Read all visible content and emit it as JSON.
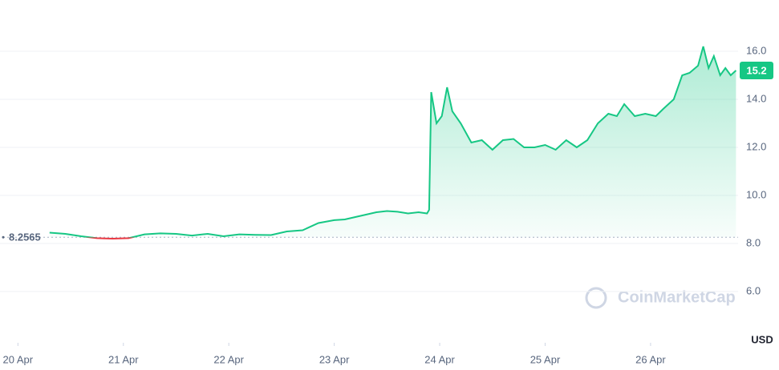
{
  "chart_data": {
    "type": "line",
    "x": [
      0.3,
      0.45,
      0.6,
      0.75,
      0.9,
      1.05,
      1.2,
      1.35,
      1.5,
      1.65,
      1.8,
      1.95,
      2.1,
      2.25,
      2.4,
      2.55,
      2.7,
      2.85,
      3.0,
      3.1,
      3.2,
      3.3,
      3.4,
      3.5,
      3.6,
      3.7,
      3.8,
      3.88,
      3.9,
      3.92,
      3.97,
      4.02,
      4.07,
      4.12,
      4.2,
      4.3,
      4.4,
      4.5,
      4.6,
      4.7,
      4.8,
      4.9,
      5.0,
      5.1,
      5.2,
      5.3,
      5.4,
      5.5,
      5.6,
      5.68,
      5.75,
      5.85,
      5.95,
      6.05,
      6.12,
      6.22,
      6.3,
      6.37,
      6.45,
      6.5,
      6.55,
      6.6,
      6.66,
      6.71,
      6.76,
      6.81
    ],
    "values": [
      8.45,
      8.4,
      8.3,
      8.22,
      8.2,
      8.22,
      8.38,
      8.42,
      8.4,
      8.33,
      8.4,
      8.3,
      8.38,
      8.36,
      8.35,
      8.5,
      8.55,
      8.85,
      8.97,
      9.0,
      9.1,
      9.2,
      9.3,
      9.35,
      9.32,
      9.25,
      9.3,
      9.25,
      9.4,
      14.3,
      13.0,
      13.3,
      14.5,
      13.5,
      13.0,
      12.2,
      12.3,
      11.9,
      12.3,
      12.35,
      12.0,
      12.0,
      12.1,
      11.9,
      12.3,
      12.0,
      12.3,
      13.0,
      13.4,
      13.3,
      13.8,
      13.3,
      13.4,
      13.3,
      13.6,
      14.0,
      15.0,
      15.1,
      15.4,
      16.2,
      15.3,
      15.8,
      15.0,
      15.3,
      15.0,
      15.2
    ],
    "xlim": [
      -0.17,
      6.83
    ],
    "ylim": [
      4,
      18
    ],
    "xticks": [
      {
        "value": 0,
        "label": "20 Apr"
      },
      {
        "value": 1,
        "label": "21 Apr"
      },
      {
        "value": 2,
        "label": "22 Apr"
      },
      {
        "value": 3,
        "label": "23 Apr"
      },
      {
        "value": 4,
        "label": "24 Apr"
      },
      {
        "value": 5,
        "label": "25 Apr"
      },
      {
        "value": 6,
        "label": "26 Apr"
      }
    ],
    "yticks": [
      {
        "value": 6,
        "label": "6.0"
      },
      {
        "value": 8,
        "label": "8.0"
      },
      {
        "value": 10,
        "label": "10.0"
      },
      {
        "value": 12,
        "label": "12.0"
      },
      {
        "value": 14,
        "label": "14.0"
      },
      {
        "value": 16,
        "label": "16.0"
      }
    ],
    "y_unit": "USD",
    "reference": 8.2565,
    "last_price": 15.2,
    "color": "#16c784",
    "down_color": "#ea3943",
    "grid": true,
    "watermark": "CoinMarketCap"
  }
}
